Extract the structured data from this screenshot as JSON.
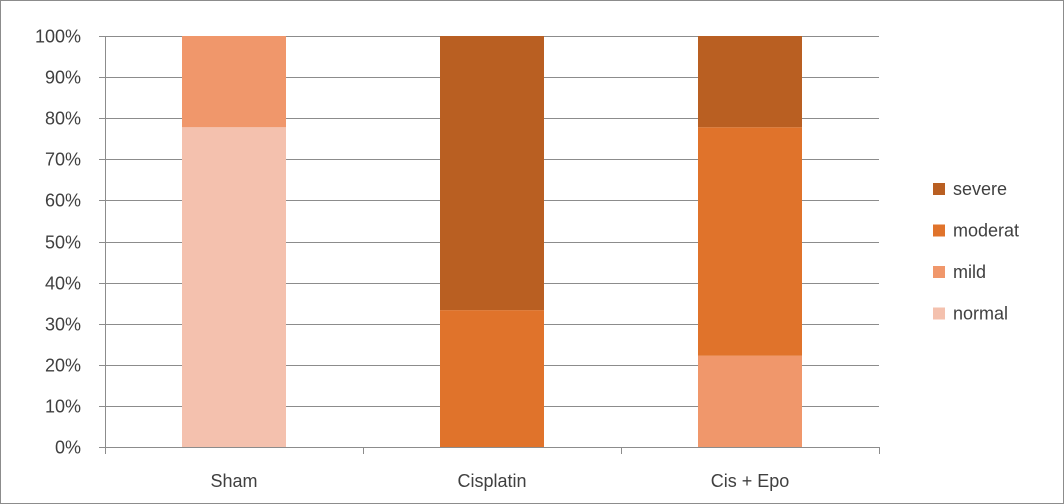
{
  "chart_data": {
    "type": "bar",
    "stacked": true,
    "percent_stacked": true,
    "categories": [
      "Sham",
      "Cisplatin",
      "Cis + Epo"
    ],
    "series": [
      {
        "name": "normal",
        "color": "#f4c1ae",
        "values": [
          77.8,
          0,
          0
        ]
      },
      {
        "name": "mild",
        "color": "#f0976b",
        "values": [
          22.2,
          0,
          22.2
        ]
      },
      {
        "name": "moderat",
        "color": "#e0732b",
        "values": [
          0,
          33.3,
          55.6
        ]
      },
      {
        "name": "severe",
        "color": "#b95f22",
        "values": [
          0,
          66.7,
          22.2
        ]
      }
    ],
    "y_ticks": [
      "0%",
      "10%",
      "20%",
      "30%",
      "40%",
      "50%",
      "60%",
      "70%",
      "80%",
      "90%",
      "100%"
    ],
    "ylim": [
      0,
      100
    ],
    "grid": true,
    "legend_position": "right",
    "legend_order": [
      "severe",
      "moderat",
      "mild",
      "normal"
    ]
  }
}
